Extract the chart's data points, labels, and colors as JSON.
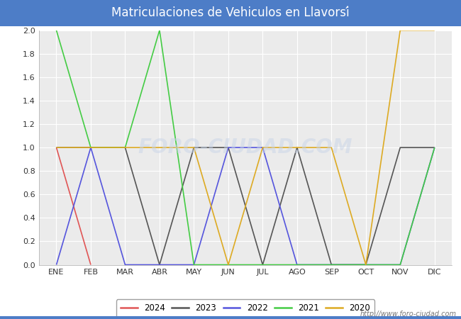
{
  "title": "Matriculaciones de Vehiculos en Llavorsí",
  "months": [
    "ENE",
    "FEB",
    "MAR",
    "ABR",
    "MAY",
    "JUN",
    "JUL",
    "AGO",
    "SEP",
    "OCT",
    "NOV",
    "DIC"
  ],
  "series": {
    "2024": [
      1,
      0,
      null,
      null,
      null,
      null,
      null,
      null,
      null,
      null,
      null,
      null
    ],
    "2023": [
      1,
      1,
      1,
      0,
      1,
      1,
      0,
      1,
      0,
      0,
      1,
      1
    ],
    "2022": [
      0,
      1,
      0,
      0,
      0,
      1,
      1,
      0,
      0,
      0,
      0,
      1
    ],
    "2021": [
      2,
      1,
      1,
      2,
      0,
      0,
      0,
      0,
      0,
      0,
      0,
      1
    ],
    "2020": [
      1,
      1,
      1,
      1,
      1,
      0,
      1,
      1,
      1,
      0,
      2,
      2
    ]
  },
  "colors": {
    "2024": "#e05555",
    "2023": "#555555",
    "2022": "#5555dd",
    "2021": "#44cc44",
    "2020": "#ddaa22"
  },
  "ylim": [
    0.0,
    2.0
  ],
  "yticks": [
    0.0,
    0.2,
    0.4,
    0.6,
    0.8,
    1.0,
    1.2,
    1.4,
    1.6,
    1.8,
    2.0
  ],
  "title_bg_color": "#4d7dc7",
  "title_text_color": "#ffffff",
  "plot_bg_color": "#ebebeb",
  "fig_bg_color": "#ffffff",
  "grid_color": "#ffffff",
  "watermark_text": "http://www.foro-ciudad.com",
  "watermark_center": "FORO-CIUDAD.COM",
  "legend_years": [
    "2024",
    "2023",
    "2022",
    "2021",
    "2020"
  ]
}
